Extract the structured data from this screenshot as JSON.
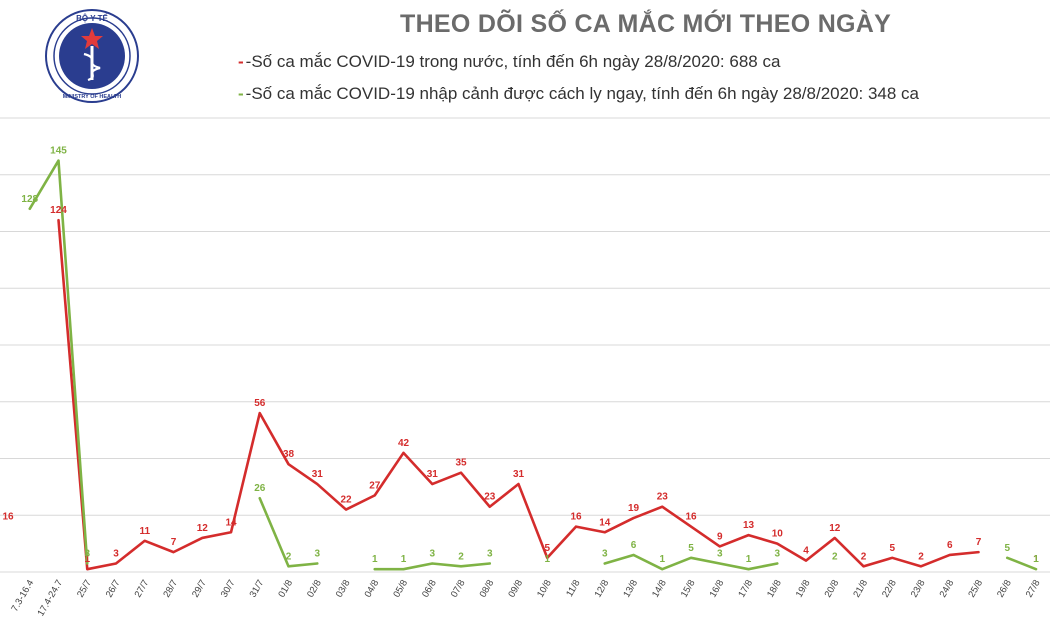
{
  "header": {
    "logo_text": "BỘ Y TẾ",
    "logo_subtext": "MINISTRY OF HEALTH"
  },
  "colors": {
    "domestic": "#d42c2c",
    "imported": "#7fb345",
    "grid": "#d8d8d8",
    "axis_text": "#444444"
  },
  "chart_data": {
    "type": "line",
    "title": "THEO DÕI SỐ CA MẮC MỚI THEO NGÀY",
    "xlabel": "",
    "ylabel": "",
    "ylim": [
      0,
      160
    ],
    "grid": true,
    "legend_placement": "top",
    "categories": [
      "",
      "7.3-16.4",
      "17.4-24.7",
      "25/7",
      "26/7",
      "27/7",
      "28/7",
      "29/7",
      "30/7",
      "31/7",
      "01/8",
      "02/8",
      "03/8",
      "04/8",
      "05/8",
      "06/8",
      "07/8",
      "08/8",
      "09/8",
      "10/8",
      "11/8",
      "12/8",
      "13/8",
      "14/8",
      "15/8",
      "16/8",
      "17/8",
      "18/8",
      "19/8",
      "20/8",
      "21/8",
      "22/8",
      "23/8",
      "24/8",
      "25/8",
      "26/8",
      "27/8"
    ],
    "series": [
      {
        "name": "-Số ca mắc COVID-19 trong nước, tính đến 6h ngày 28/8/2020: 688 ca",
        "color": "#d42c2c",
        "values": [
          16,
          null,
          124,
          1,
          3,
          11,
          7,
          12,
          14,
          56,
          38,
          31,
          22,
          27,
          42,
          31,
          35,
          23,
          31,
          5,
          16,
          14,
          19,
          23,
          16,
          9,
          13,
          10,
          4,
          12,
          2,
          5,
          2,
          6,
          7,
          null,
          1
        ]
      },
      {
        "name": "-Số ca mắc COVID-19 nhập cảnh được cách ly ngay, tính đến 6h ngày 28/8/2020: 348 ca",
        "color": "#7fb345",
        "values": [
          null,
          128,
          145,
          3,
          null,
          null,
          null,
          null,
          null,
          26,
          2,
          3,
          null,
          1,
          1,
          3,
          2,
          3,
          null,
          1,
          null,
          3,
          6,
          1,
          5,
          3,
          1,
          3,
          null,
          2,
          null,
          null,
          null,
          null,
          null,
          5,
          1
        ]
      }
    ]
  }
}
